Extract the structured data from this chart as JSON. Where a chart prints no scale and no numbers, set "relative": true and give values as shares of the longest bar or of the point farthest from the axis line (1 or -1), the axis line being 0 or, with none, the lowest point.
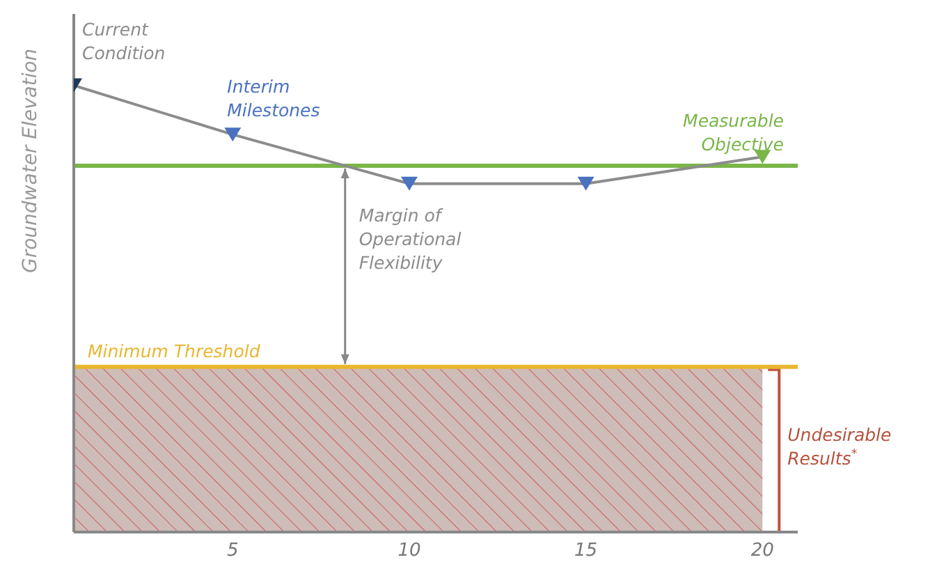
{
  "chart_data": {
    "type": "line",
    "relative": true,
    "ylabel": "Groundwater Elevation",
    "x": [
      0.5,
      5,
      10,
      15,
      20
    ],
    "xlim": [
      0.5,
      21
    ],
    "xticks": [
      5,
      10,
      15,
      20
    ],
    "tick_labels": "x",
    "series": [
      {
        "color": "#8c8c8c",
        "colors": [
          "#1f3a5a",
          "#4a72c0",
          "#4a72c0",
          "#4a72c0",
          "#7ab648"
        ],
        "values": [
          1,
          0.89,
          0.78,
          0.78,
          0.84
        ]
      }
    ],
    "marker": "triangle",
    "line_style": "solid",
    "grid": false,
    "ref_lines": [
      {
        "axis": "y",
        "value": 0.82,
        "label": "Measurable Objective",
        "color": "#7ab648"
      },
      {
        "axis": "y",
        "value": 0.37,
        "label": "Minimum Threshold",
        "color": "#e8b730"
      }
    ],
    "bands": [
      {
        "axis": "y",
        "from": 0,
        "to": 0.37,
        "label": "Undesirable Results$^{*}$",
        "color": "#cdbcb8"
      }
    ],
    "annotations": [
      {
        "text": "Current Condition",
        "x": 0.5,
        "y": 1
      },
      {
        "text": "Interim Milestones",
        "x": 5,
        "y": 0.89
      },
      "Margin of Operational Flexibility"
    ]
  }
}
